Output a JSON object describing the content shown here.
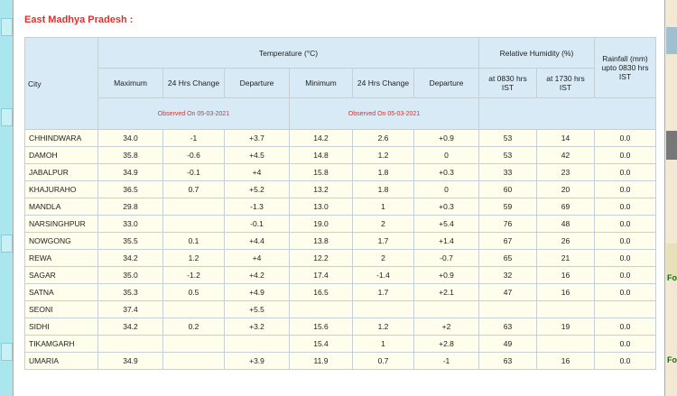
{
  "title": "East Madhya Pradesh :",
  "side_text": [
    "Fo",
    "Fo"
  ],
  "table": {
    "header": {
      "city": "City",
      "temperature": "Temperature (°C)",
      "humidity": "Relative Humidity (%)",
      "rainfall": "Rainfall (mm) upto 0830 hrs IST",
      "columns": [
        "Maximum",
        "24 Hrs Change",
        "Departure",
        "Minimum",
        "24 Hrs Change",
        "Departure",
        "at 0830 hrs IST",
        "at 1730 hrs IST"
      ],
      "observed": [
        "Observed On 05-03-2021",
        "Observed On 05-03-2021"
      ]
    },
    "rows": [
      [
        "CHHINDWARA",
        "34.0",
        "-1",
        "+3.7",
        "14.2",
        "2.6",
        "+0.9",
        "53",
        "14",
        "0.0"
      ],
      [
        "DAMOH",
        "35.8",
        "-0.6",
        "+4.5",
        "14.8",
        "1.2",
        "0",
        "53",
        "42",
        "0.0"
      ],
      [
        "JABALPUR",
        "34.9",
        "-0.1",
        "+4",
        "15.8",
        "1.8",
        "+0.3",
        "33",
        "23",
        "0.0"
      ],
      [
        "KHAJURAHO",
        "36.5",
        "0.7",
        "+5.2",
        "13.2",
        "1.8",
        "0",
        "60",
        "20",
        "0.0"
      ],
      [
        "MANDLA",
        "29.8",
        null,
        "-1.3",
        "13.0",
        "1",
        "+0.3",
        "59",
        "69",
        "0.0"
      ],
      [
        "NARSINGHPUR",
        "33.0",
        null,
        "-0.1",
        "19.0",
        "2",
        "+5.4",
        "76",
        "48",
        "0.0"
      ],
      [
        "NOWGONG",
        "35.5",
        "0.1",
        "+4.4",
        "13.8",
        "1.7",
        "+1.4",
        "67",
        "26",
        "0.0"
      ],
      [
        "REWA",
        "34.2",
        "1.2",
        "+4",
        "12.2",
        "2",
        "-0.7",
        "65",
        "21",
        "0.0"
      ],
      [
        "SAGAR",
        "35.0",
        "-1.2",
        "+4.2",
        "17.4",
        "-1.4",
        "+0.9",
        "32",
        "16",
        "0.0"
      ],
      [
        "SATNA",
        "35.3",
        "0.5",
        "+4.9",
        "16.5",
        "1.7",
        "+2.1",
        "47",
        "16",
        "0.0"
      ],
      [
        "SEONI",
        "37.4",
        null,
        "+5.5",
        null,
        null,
        null,
        null,
        null,
        null
      ],
      [
        "SIDHI",
        "34.2",
        "0.2",
        "+3.2",
        "15.6",
        "1.2",
        "+2",
        "63",
        "19",
        "0.0"
      ],
      [
        "TIKAMGARH",
        null,
        null,
        null,
        "15.4",
        "1",
        "+2.8",
        "49",
        null,
        "0.0"
      ],
      [
        "UMARIA",
        "34.9",
        null,
        "+3.9",
        "11.9",
        "0.7",
        "-1",
        "63",
        "16",
        "0.0"
      ]
    ]
  }
}
